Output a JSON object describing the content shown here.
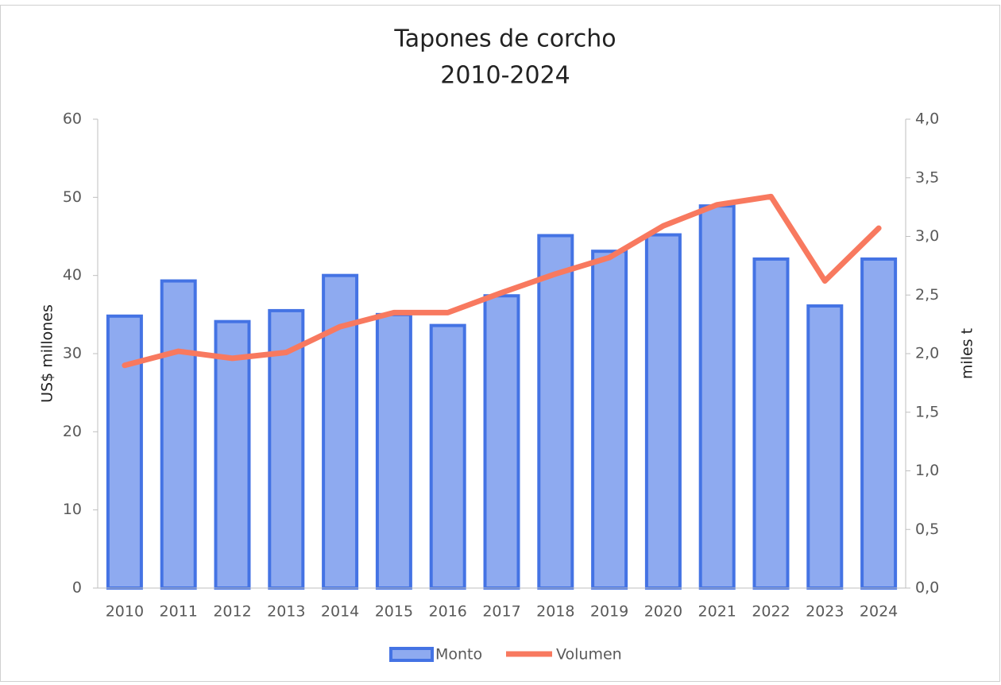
{
  "chart_data": {
    "type": "bar_line",
    "title": [
      "Tapones de corcho",
      "2010-2024"
    ],
    "ylabel": "US$ millones",
    "y2label": "miles t",
    "categories": [
      "2010",
      "2011",
      "2012",
      "2013",
      "2014",
      "2015",
      "2016",
      "2017",
      "2018",
      "2019",
      "2020",
      "2021",
      "2022",
      "2023",
      "2024"
    ],
    "series": [
      {
        "name": "Monto",
        "type": "bar",
        "color": "#8eaaf0",
        "edge": "#4473e4",
        "values": [
          34.8,
          39.3,
          34.1,
          35.5,
          40.0,
          35.0,
          33.6,
          37.4,
          45.1,
          43.1,
          45.2,
          48.9,
          42.1,
          36.1,
          42.1
        ]
      },
      {
        "name": "Volumen",
        "type": "line",
        "axis": "y2",
        "color": "#f8795f",
        "values": [
          1.9,
          2.02,
          1.96,
          2.01,
          2.23,
          2.35,
          2.35,
          2.52,
          2.68,
          2.82,
          3.09,
          3.27,
          3.34,
          2.62,
          3.07
        ]
      }
    ],
    "ylim": [
      0,
      60
    ],
    "yticks": [
      0,
      10,
      20,
      30,
      40,
      50,
      60
    ],
    "y2lim": [
      0,
      4
    ],
    "y2ticks": [
      {
        "value": 0,
        "label": "0,0"
      },
      {
        "value": 0.5,
        "label": "0,5"
      },
      {
        "value": 1,
        "label": "1,0"
      },
      {
        "value": 1.5,
        "label": "1,5"
      },
      {
        "value": 2,
        "label": "2,0"
      },
      {
        "value": 2.5,
        "label": "2,5"
      },
      {
        "value": 3,
        "label": "3,0"
      },
      {
        "value": 3.5,
        "label": "3,5"
      },
      {
        "value": 4,
        "label": "4,0"
      }
    ],
    "legend": "bottom"
  }
}
